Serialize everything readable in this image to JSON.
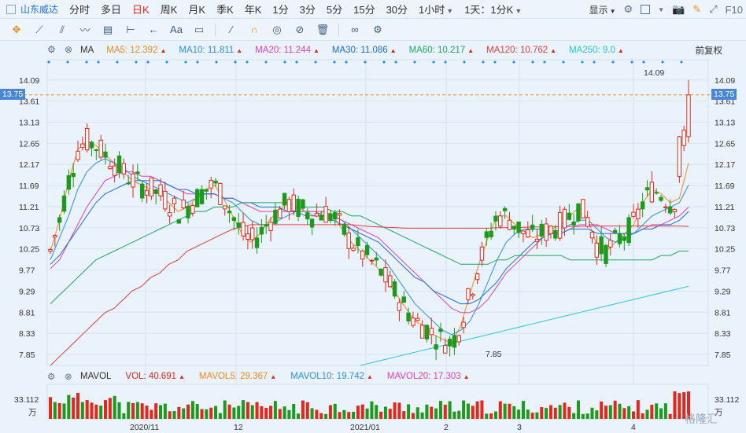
{
  "topbar": {
    "stock_name": "山东威达",
    "tabs": [
      {
        "label": "分时",
        "active": false,
        "dropdown": false
      },
      {
        "label": "多日",
        "active": false,
        "dropdown": false
      },
      {
        "label": "日K",
        "active": true,
        "dropdown": false
      },
      {
        "label": "周K",
        "active": false,
        "dropdown": false
      },
      {
        "label": "月K",
        "active": false,
        "dropdown": false
      },
      {
        "label": "季K",
        "active": false,
        "dropdown": false
      },
      {
        "label": "年K",
        "active": false,
        "dropdown": false
      },
      {
        "label": "1分",
        "active": false,
        "dropdown": false
      },
      {
        "label": "3分",
        "active": false,
        "dropdown": false
      },
      {
        "label": "5分",
        "active": false,
        "dropdown": false
      },
      {
        "label": "15分",
        "active": false,
        "dropdown": false
      },
      {
        "label": "30分",
        "active": false,
        "dropdown": false
      },
      {
        "label": "1小时",
        "active": false,
        "dropdown": true
      },
      {
        "label": "1天：1分K",
        "active": false,
        "dropdown": true
      }
    ],
    "display_label": "显示",
    "f10_label": "F10",
    "accent_color": "#e0281c"
  },
  "toolbar": {
    "text_tool_label": "Aa",
    "icons": [
      "crosshair-icon",
      "line-icon",
      "channel-icon",
      "wave-icon",
      "fib-icon",
      "range-icon",
      "arrow-icon",
      "text-icon",
      "comment-icon",
      "pencil-icon",
      "magnet-icon",
      "eye-icon",
      "hide-icon",
      "trash-icon",
      "link-icon",
      "settings-icon"
    ]
  },
  "ma_bar": {
    "indicator": "MA",
    "items": [
      {
        "label": "MA5: 12.392",
        "color": "#f08a1c"
      },
      {
        "label": "MA10: 11.811",
        "color": "#2a8ee8"
      },
      {
        "label": "MA20: 11.244",
        "color": "#e040b8"
      },
      {
        "label": "MA30: 11.086",
        "color": "#1b6fd8"
      },
      {
        "label": "MA60: 10.217",
        "color": "#1aa860"
      },
      {
        "label": "MA120: 10.762",
        "color": "#e63c3c"
      },
      {
        "label": "MA250: 9.0",
        "color": "#22c8d8"
      }
    ],
    "adjust_label": "前复权"
  },
  "vol_bar": {
    "indicator": "MAVOL",
    "items": [
      {
        "label": "VOL: 40.691",
        "color": "#e0281c"
      },
      {
        "label": "MAVOL5: 29.367",
        "color": "#f08a1c"
      },
      {
        "label": "MAVOL10: 19.742",
        "color": "#2a8ee8"
      },
      {
        "label": "MAVOL20: 17.303",
        "color": "#e040b8"
      }
    ]
  },
  "price_axis": {
    "ticks": [
      "14.09",
      "13.61",
      "13.13",
      "12.65",
      "12.17",
      "11.69",
      "11.21",
      "10.73",
      "10.25",
      "9.77",
      "9.29",
      "8.81",
      "8.33",
      "7.85"
    ],
    "current_price": "13.75",
    "high_label": "14.09",
    "low_label": "7.85"
  },
  "volume_axis": {
    "top": "33.112",
    "unit": "万"
  },
  "time_axis": [
    "2020/11",
    "12",
    "2021/01",
    "2",
    "3",
    "4"
  ],
  "watermark": "格隆汇",
  "colors": {
    "up": "#e0281c",
    "down": "#1c9a1c",
    "background": "#eaf2fb",
    "price_tag": "#4a86d4"
  },
  "chart_data": {
    "type": "candlestick",
    "ylim": [
      7.6,
      14.3
    ],
    "candles": [],
    "ma_series": [
      {
        "name": "MA5",
        "color": "#f08a1c",
        "values": [
          10.2,
          10.9,
          11.8,
          12.5,
          12.7,
          12.6,
          12.4,
          12.2,
          12.0,
          11.8,
          11.7,
          11.6,
          11.5,
          11.3,
          11.1,
          11.2,
          11.4,
          11.6,
          11.7,
          11.4,
          11.0,
          10.6,
          10.4,
          10.6,
          10.9,
          11.1,
          11.3,
          11.2,
          11.1,
          11.0,
          11.1,
          11.0,
          10.7,
          10.4,
          10.2,
          10.0,
          9.8,
          9.5,
          9.2,
          8.9,
          8.6,
          8.5,
          8.3,
          8.2,
          8.1,
          8.5,
          9.2,
          9.9,
          10.5,
          11.0,
          11.0,
          10.8,
          10.6,
          10.5,
          10.6,
          10.7,
          10.8,
          11.0,
          11.2,
          10.9,
          10.3,
          10.2,
          10.4,
          10.6,
          10.8,
          11.3,
          11.6,
          11.5,
          11.3,
          11.4,
          12.2
        ]
      },
      {
        "name": "MA10",
        "color": "#2a8ee8",
        "values": [
          10.0,
          10.5,
          11.0,
          11.6,
          12.0,
          12.2,
          12.3,
          12.2,
          12.1,
          11.9,
          11.8,
          11.7,
          11.6,
          11.5,
          11.4,
          11.3,
          11.4,
          11.5,
          11.5,
          11.4,
          11.3,
          11.1,
          10.9,
          10.8,
          10.8,
          10.9,
          11.0,
          11.1,
          11.1,
          11.1,
          11.0,
          11.0,
          10.9,
          10.7,
          10.5,
          10.3,
          10.1,
          9.9,
          9.6,
          9.3,
          9.0,
          8.8,
          8.6,
          8.4,
          8.3,
          8.4,
          8.6,
          9.0,
          9.5,
          10.0,
          10.4,
          10.6,
          10.7,
          10.7,
          10.7,
          10.6,
          10.7,
          10.8,
          10.9,
          10.9,
          10.7,
          10.5,
          10.4,
          10.5,
          10.6,
          10.8,
          11.0,
          11.1,
          11.2,
          11.3,
          11.7
        ]
      },
      {
        "name": "MA20",
        "color": "#e040b8",
        "values": [
          9.8,
          10.0,
          10.4,
          10.8,
          11.2,
          11.5,
          11.8,
          11.9,
          12.0,
          12.0,
          11.9,
          11.9,
          11.8,
          11.7,
          11.6,
          11.5,
          11.5,
          11.5,
          11.5,
          11.4,
          11.4,
          11.3,
          11.2,
          11.1,
          11.1,
          11.1,
          11.1,
          11.1,
          11.1,
          11.1,
          11.1,
          11.0,
          10.9,
          10.8,
          10.7,
          10.6,
          10.5,
          10.3,
          10.1,
          9.9,
          9.7,
          9.5,
          9.3,
          9.1,
          8.9,
          8.8,
          8.8,
          8.9,
          9.1,
          9.4,
          9.7,
          9.9,
          10.1,
          10.3,
          10.5,
          10.6,
          10.6,
          10.7,
          10.8,
          10.8,
          10.8,
          10.7,
          10.6,
          10.6,
          10.6,
          10.7,
          10.8,
          10.8,
          10.9,
          11.0,
          11.2
        ]
      },
      {
        "name": "MA30",
        "color": "#1b6fd8",
        "values": [
          9.9,
          10.1,
          10.4,
          10.7,
          11.0,
          11.3,
          11.5,
          11.6,
          11.7,
          11.8,
          11.8,
          11.8,
          11.8,
          11.7,
          11.6,
          11.6,
          11.5,
          11.5,
          11.5,
          11.4,
          11.4,
          11.3,
          11.3,
          11.2,
          11.2,
          11.2,
          11.1,
          11.1,
          11.0,
          11.0,
          11.0,
          10.9,
          10.8,
          10.7,
          10.6,
          10.5,
          10.4,
          10.2,
          10.0,
          9.8,
          9.6,
          9.5,
          9.3,
          9.2,
          9.1,
          9.0,
          9.0,
          9.1,
          9.3,
          9.5,
          9.8,
          10.0,
          10.2,
          10.4,
          10.5,
          10.6,
          10.6,
          10.7,
          10.7,
          10.7,
          10.6,
          10.6,
          10.6,
          10.6,
          10.6,
          10.7,
          10.7,
          10.8,
          10.8,
          10.9,
          11.1
        ]
      },
      {
        "name": "MA60",
        "color": "#1aa860",
        "values": [
          9.0,
          9.2,
          9.4,
          9.6,
          9.8,
          10.0,
          10.1,
          10.2,
          10.3,
          10.4,
          10.5,
          10.6,
          10.7,
          10.8,
          10.9,
          11.0,
          11.1,
          11.1,
          11.2,
          11.2,
          11.2,
          11.3,
          11.3,
          11.3,
          11.3,
          11.3,
          11.3,
          11.2,
          11.2,
          11.2,
          11.2,
          11.1,
          11.1,
          11.0,
          11.0,
          10.9,
          10.8,
          10.7,
          10.6,
          10.5,
          10.4,
          10.3,
          10.2,
          10.1,
          10.0,
          9.9,
          9.9,
          9.9,
          9.9,
          10.0,
          10.0,
          10.1,
          10.1,
          10.1,
          10.1,
          10.1,
          10.1,
          10.0,
          10.0,
          10.0,
          10.0,
          10.0,
          10.0,
          10.0,
          10.0,
          10.0,
          10.0,
          10.1,
          10.1,
          10.2,
          10.2
        ]
      },
      {
        "name": "MA120",
        "color": "#e63c3c",
        "values": [
          7.6,
          7.8,
          8.0,
          8.2,
          8.4,
          8.6,
          8.8,
          8.9,
          9.1,
          9.3,
          9.4,
          9.6,
          9.7,
          9.9,
          10.0,
          10.2,
          10.3,
          10.4,
          10.5,
          10.6,
          10.7,
          10.75,
          10.8,
          10.8,
          10.8,
          10.8,
          10.8,
          10.8,
          10.8,
          10.8,
          10.8,
          10.8,
          10.8,
          10.8,
          10.78,
          10.76,
          10.75,
          10.74,
          10.73,
          10.72,
          10.72,
          10.72,
          10.72,
          10.72,
          10.72,
          10.72,
          10.72,
          10.72,
          10.72,
          10.73,
          10.73,
          10.74,
          10.74,
          10.75,
          10.75,
          10.75,
          10.76,
          10.76,
          10.76,
          10.77,
          10.77,
          10.77,
          10.77,
          10.77,
          10.77,
          10.77,
          10.77,
          10.77,
          10.77,
          10.77,
          10.76
        ]
      },
      {
        "name": "MA250",
        "color": "#22c8d8",
        "values": [
          null,
          null,
          null,
          null,
          null,
          null,
          null,
          null,
          null,
          null,
          null,
          null,
          null,
          null,
          null,
          null,
          null,
          null,
          null,
          null,
          null,
          null,
          null,
          null,
          null,
          null,
          null,
          null,
          null,
          null,
          null,
          null,
          null,
          null,
          7.6,
          7.65,
          7.7,
          7.75,
          7.8,
          7.85,
          7.9,
          7.95,
          8.0,
          8.05,
          8.1,
          8.15,
          8.2,
          8.25,
          8.3,
          8.35,
          8.4,
          8.45,
          8.5,
          8.55,
          8.6,
          8.65,
          8.7,
          8.75,
          8.8,
          8.85,
          8.9,
          8.95,
          9.0,
          9.05,
          9.1,
          9.15,
          9.2,
          9.25,
          9.3,
          9.35,
          9.4
        ]
      }
    ],
    "time_labels": [
      "2020/11",
      "12",
      "2021/01",
      "2",
      "3",
      "4"
    ]
  }
}
